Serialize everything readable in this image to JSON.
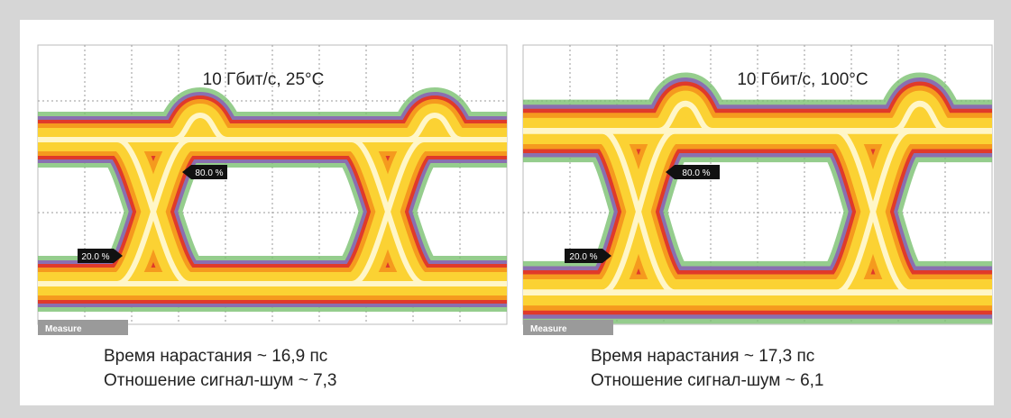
{
  "panels": [
    {
      "title": "10 Гбит/с, 25°C",
      "markers": [
        "80.0 %",
        "20.0 %"
      ],
      "button": "Measure",
      "caption": [
        "Время нарастания ~ 16,9 пс",
        "Отношение сигнал-шум ~ 7,3"
      ]
    },
    {
      "title": "10 Гбит/с, 100°C",
      "markers": [
        "80.0 %",
        "20.0 %"
      ],
      "button": "Measure",
      "caption": [
        "Время нарастания ~ 17,3 пс",
        "Отношение сигнал-шум ~ 6,1"
      ]
    }
  ]
}
